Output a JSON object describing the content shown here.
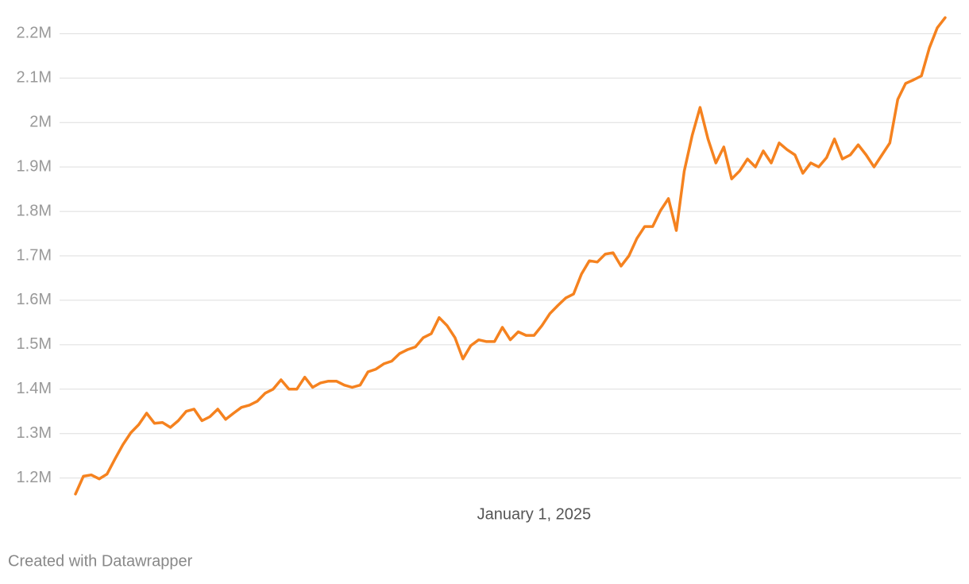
{
  "chart_data": {
    "type": "line",
    "credit": "Created with Datawrapper",
    "categories": [
      null,
      null,
      null,
      null,
      null,
      null,
      null,
      null,
      null,
      null,
      null,
      null,
      null,
      null,
      null,
      null,
      null,
      null,
      null,
      null,
      null,
      null,
      null,
      null,
      null,
      null,
      null,
      null,
      null,
      null,
      null,
      null,
      null,
      null,
      null,
      null,
      null,
      null,
      null,
      null,
      null,
      null,
      null,
      null,
      null,
      null,
      null,
      null,
      null,
      null,
      null,
      null,
      null,
      null,
      null,
      null,
      null,
      null,
      "January 1, 2025",
      null,
      null,
      null,
      null,
      null,
      null,
      null,
      null,
      null,
      null,
      null,
      null,
      null,
      null,
      null,
      null,
      null,
      null,
      null,
      null,
      null,
      null,
      null,
      null,
      null,
      null,
      null,
      null,
      null,
      null,
      null,
      null,
      null,
      null,
      null,
      null,
      null,
      null,
      null,
      null,
      null,
      null,
      null,
      null,
      null,
      null,
      null,
      null,
      null,
      null,
      null,
      null
    ],
    "series": [
      {
        "color": "#f5821f",
        "values": [
          1164000,
          1204000,
          1207000,
          1198000,
          1209000,
          1243000,
          1275000,
          1302000,
          1320000,
          1346000,
          1323000,
          1325000,
          1314000,
          1329000,
          1350000,
          1355000,
          1329000,
          1338000,
          1355000,
          1332000,
          1346000,
          1359000,
          1364000,
          1373000,
          1391000,
          1400000,
          1421000,
          1400000,
          1400000,
          1427000,
          1404000,
          1414000,
          1418000,
          1418000,
          1409000,
          1404000,
          1409000,
          1439000,
          1445000,
          1457000,
          1463000,
          1480000,
          1489000,
          1495000,
          1516000,
          1525000,
          1561000,
          1543000,
          1516000,
          1468000,
          1498000,
          1511000,
          1507000,
          1507000,
          1539000,
          1511000,
          1529000,
          1521000,
          1521000,
          1543000,
          1570000,
          1588000,
          1605000,
          1614000,
          1659000,
          1689000,
          1686000,
          1704000,
          1707000,
          1677000,
          1700000,
          1739000,
          1766000,
          1766000,
          1802000,
          1829000,
          1757000,
          1891000,
          1971000,
          2034000,
          1963000,
          1909000,
          1945000,
          1873000,
          1891000,
          1918000,
          1900000,
          1936000,
          1909000,
          1954000,
          1939000,
          1927000,
          1886000,
          1909000,
          1900000,
          1921000,
          1963000,
          1918000,
          1927000,
          1950000,
          1927000,
          1900000,
          1927000,
          1954000,
          2052000,
          2088000,
          2096000,
          2105000,
          2168000,
          2213000,
          2236000
        ]
      }
    ],
    "ylim": [
      1160000,
      2240000
    ],
    "yticks": [
      {
        "value": 1200000,
        "label": "1.2M"
      },
      {
        "value": 1300000,
        "label": "1.3M"
      },
      {
        "value": 1400000,
        "label": "1.4M"
      },
      {
        "value": 1500000,
        "label": "1.5M"
      },
      {
        "value": 1600000,
        "label": "1.6M"
      },
      {
        "value": 1700000,
        "label": "1.7M"
      },
      {
        "value": 1800000,
        "label": "1.8M"
      },
      {
        "value": 1900000,
        "label": "1.9M"
      },
      {
        "value": 2000000,
        "label": "2M"
      },
      {
        "value": 2100000,
        "label": "2.1M"
      },
      {
        "value": 2200000,
        "label": "2.2M"
      }
    ],
    "grid": true
  }
}
